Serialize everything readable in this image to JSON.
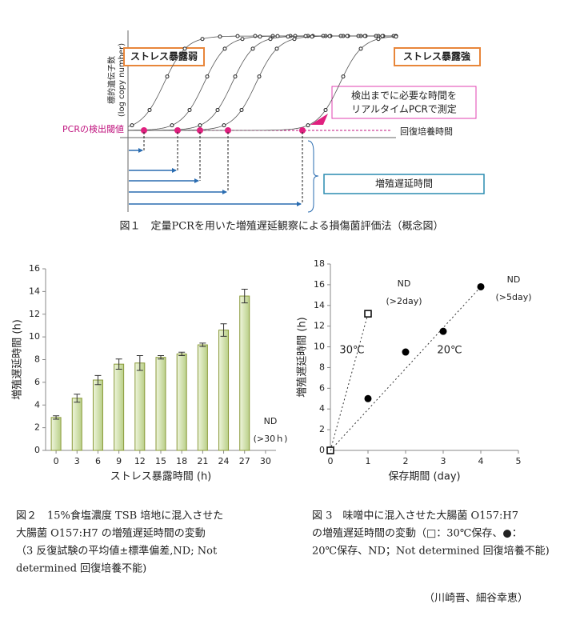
{
  "figure1": {
    "label_weak": "ストレス暴露弱",
    "label_strong": "ストレス暴露強",
    "y_label": [
      "標的遺伝子数",
      "(log copy number)"
    ],
    "note": [
      "検出までに必要な時間を",
      "リアルタイムPCRで測定"
    ],
    "threshold_label": "PCRの検出閾値",
    "x_label": "回復培養時間",
    "delay_label": "増殖遅延時間",
    "caption": "図１　定量PCRを用いた増殖遅延観察による損傷菌評価法（概念図）"
  },
  "chart_data": [
    {
      "type": "bar",
      "x_label": "ストレス暴露時間 (h)",
      "y_label": "増殖遅延時間 (h)",
      "x": [
        0,
        3,
        6,
        9,
        12,
        15,
        18,
        21,
        24,
        27
      ],
      "values": [
        2.9,
        4.6,
        6.2,
        7.6,
        7.7,
        8.2,
        8.5,
        9.3,
        10.6,
        13.6
      ],
      "errors": [
        0.15,
        0.35,
        0.4,
        0.45,
        0.65,
        0.15,
        0.15,
        0.15,
        0.55,
        0.6
      ],
      "color": "#c9dca0",
      "xlim": [
        -1.5,
        31.5
      ],
      "xticks": [
        0,
        3,
        6,
        9,
        12,
        15,
        18,
        21,
        24,
        27,
        30
      ],
      "ylim": [
        0,
        16
      ],
      "yticks": [
        0,
        2,
        4,
        6,
        8,
        10,
        12,
        14,
        16
      ],
      "annotations": [
        "ND",
        "(>30ｈ)"
      ],
      "caption": [
        "図２　15%食塩濃度 TSB 培地に混入させた",
        "大腸菌 O157:H7 の増殖遅延時間の変動",
        "（3 反復試験の平均値±標準偏差,ND; Not",
        "determined 回復培養不能)"
      ]
    },
    {
      "type": "scatter",
      "x_label": "保存期間 (day)",
      "y_label": "増殖遅延時間 (h)",
      "series": [
        {
          "name": "30℃",
          "marker": "square",
          "color": "#000000",
          "x": [
            0,
            1
          ],
          "values": [
            0,
            13.2
          ]
        },
        {
          "name": "20℃",
          "marker": "circle",
          "color": "#000000",
          "x": [
            1,
            2,
            3,
            4
          ],
          "values": [
            5,
            9.5,
            11.5,
            15.8
          ]
        }
      ],
      "xlim": [
        0,
        5
      ],
      "xticks": [
        0,
        1,
        2,
        3,
        4,
        5
      ],
      "ylim": [
        0,
        18
      ],
      "yticks": [
        0,
        2,
        4,
        6,
        8,
        10,
        12,
        14,
        16,
        18
      ],
      "annotations": [
        "ND",
        "(>2day)",
        "ND",
        "(>5day)"
      ],
      "caption": [
        "図 3　味噌中に混入させた大腸菌 O157:H7",
        "の増殖遅延時間の変動（□：30℃保存、●：",
        "20℃保存、ND；Not determined 回復培養不能)"
      ]
    }
  ],
  "author": "（川崎晋、細谷幸恵）"
}
